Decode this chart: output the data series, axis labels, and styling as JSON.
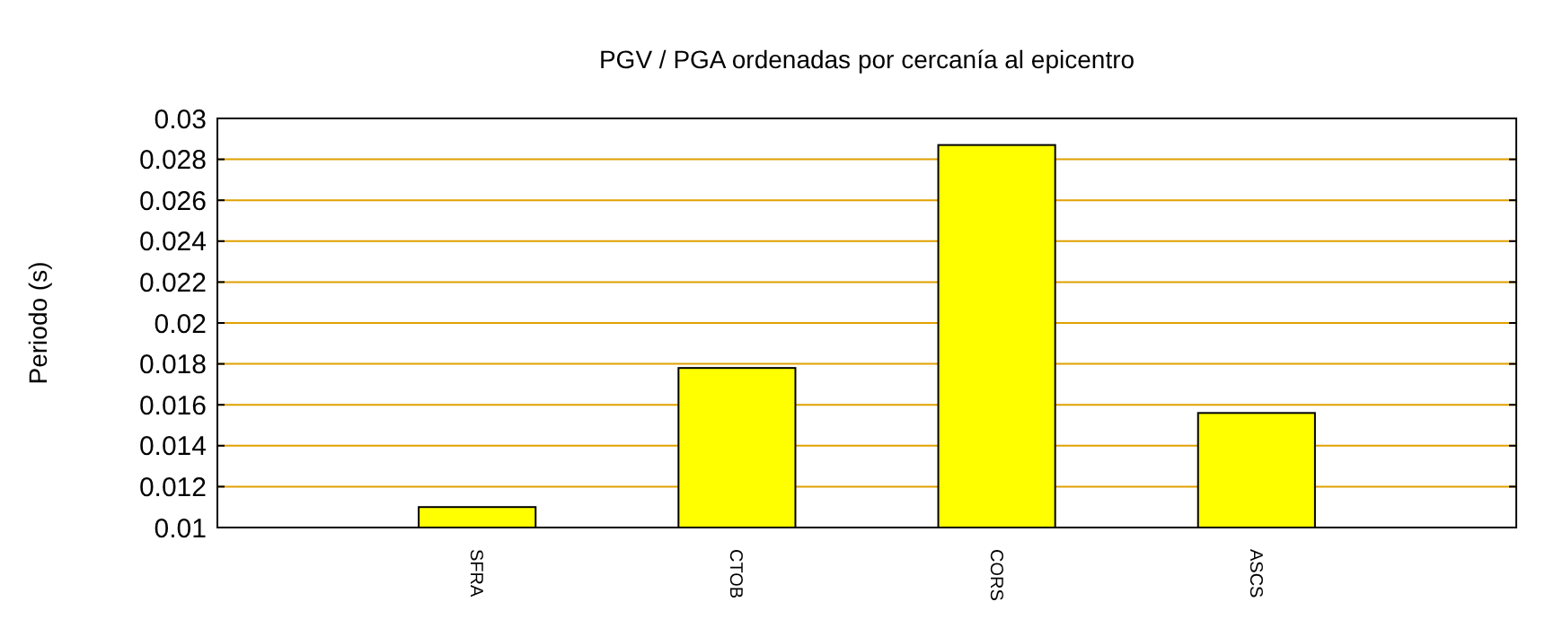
{
  "chart_data": {
    "type": "bar",
    "title": "PGV / PGA ordenadas por cercanía al epicentro",
    "ylabel": "Periodo (s)",
    "categories": [
      "SFRA",
      "CTOB",
      "CORS",
      "ASCS"
    ],
    "values": [
      0.011,
      0.0178,
      0.0287,
      0.0156
    ],
    "color": "#ffff00",
    "ylim": [
      0.01,
      0.03
    ],
    "yticks": [
      0.01,
      0.012,
      0.014,
      0.016,
      0.018,
      0.02,
      0.022,
      0.024,
      0.026,
      0.028,
      0.03
    ],
    "grid": "y"
  }
}
